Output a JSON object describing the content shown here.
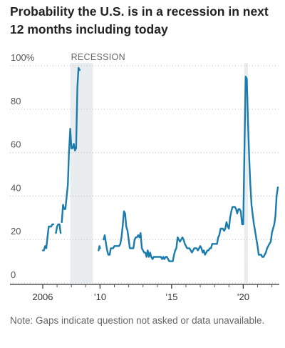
{
  "chart_data": {
    "type": "line",
    "title": "Probability the U.S. is in a recession in next 12 months including today",
    "note": "Note: Gaps indicate question not asked or data unavailable.",
    "y_unit": "percent",
    "ylim": [
      0,
      100
    ],
    "xlim": [
      2005.7,
      2022.7
    ],
    "yticks": [
      0,
      20,
      40,
      60,
      80,
      100
    ],
    "ytick_labels": [
      "0",
      "20",
      "40",
      "60",
      "80",
      "100%"
    ],
    "xticks": [
      2006,
      2010,
      2015,
      2020
    ],
    "xtick_labels": [
      "2006",
      "’10",
      "’15",
      "’20"
    ],
    "grid": "horizontal",
    "colors": {
      "line": "#1a7bad",
      "recession": "#eaedf0",
      "grid": "#bbbbbb"
    },
    "recessions": [
      {
        "label": "RECESSION",
        "start": 2007.92,
        "end": 2009.5
      },
      {
        "label": "",
        "start": 2020.08,
        "end": 2020.33
      }
    ],
    "series": [
      {
        "segments": [
          [
            [
              2006.0,
              15
            ],
            [
              2006.08,
              15
            ],
            [
              2006.17,
              17
            ],
            [
              2006.25,
              16
            ],
            [
              2006.33,
              21
            ],
            [
              2006.42,
              26
            ],
            [
              2006.5,
              26
            ],
            [
              2006.58,
              26
            ],
            [
              2006.67,
              27
            ],
            [
              2006.75,
              27
            ]
          ],
          [
            [
              2006.92,
              23
            ],
            [
              2007.0,
              26
            ],
            [
              2007.08,
              27
            ],
            [
              2007.17,
              27
            ],
            [
              2007.25,
              23
            ]
          ],
          [
            [
              2007.33,
              28
            ],
            [
              2007.42,
              36
            ],
            [
              2007.5,
              34
            ],
            [
              2007.58,
              34
            ],
            [
              2007.67,
              40
            ],
            [
              2007.75,
              45
            ],
            [
              2007.83,
              60
            ],
            [
              2007.92,
              71
            ],
            [
              2008.0,
              62
            ],
            [
              2008.08,
              62
            ],
            [
              2008.17,
              64
            ],
            [
              2008.25,
              61
            ],
            [
              2008.33,
              62
            ],
            [
              2008.42,
              90
            ],
            [
              2008.5,
              99
            ],
            [
              2008.58,
              98
            ]
          ],
          [
            [
              2009.9,
              15
            ],
            [
              2009.96,
              17
            ],
            [
              2010.0,
              16
            ]
          ],
          [
            [
              2010.25,
              20
            ],
            [
              2010.33,
              22
            ],
            [
              2010.42,
              18
            ],
            [
              2010.5,
              15
            ],
            [
              2010.58,
              13
            ],
            [
              2010.67,
              13
            ],
            [
              2010.75,
              16
            ],
            [
              2010.83,
              16
            ],
            [
              2010.92,
              16
            ],
            [
              2011.0,
              17
            ],
            [
              2011.08,
              17
            ],
            [
              2011.17,
              17
            ],
            [
              2011.25,
              17
            ],
            [
              2011.33,
              17
            ],
            [
              2011.42,
              18
            ],
            [
              2011.5,
              21
            ],
            [
              2011.58,
              26
            ],
            [
              2011.67,
              33
            ],
            [
              2011.75,
              32
            ],
            [
              2011.83,
              26
            ],
            [
              2011.92,
              24
            ],
            [
              2012.0,
              20
            ],
            [
              2012.08,
              16
            ],
            [
              2012.17,
              16
            ],
            [
              2012.25,
              16
            ],
            [
              2012.33,
              16
            ],
            [
              2012.42,
              20
            ],
            [
              2012.5,
              21
            ],
            [
              2012.58,
              21
            ],
            [
              2012.67,
              22
            ],
            [
              2012.75,
              21
            ],
            [
              2012.83,
              23
            ],
            [
              2012.92,
              16
            ],
            [
              2013.0,
              15
            ],
            [
              2013.08,
              14
            ],
            [
              2013.17,
              14
            ],
            [
              2013.25,
              12
            ],
            [
              2013.33,
              15
            ],
            [
              2013.42,
              12
            ],
            [
              2013.5,
              14
            ],
            [
              2013.58,
              12
            ],
            [
              2013.67,
              11
            ],
            [
              2013.75,
              12
            ],
            [
              2013.83,
              12
            ],
            [
              2013.92,
              12
            ],
            [
              2014.0,
              12
            ],
            [
              2014.25,
              12
            ],
            [
              2014.33,
              11
            ],
            [
              2014.42,
              12
            ],
            [
              2014.5,
              11
            ],
            [
              2014.58,
              12
            ],
            [
              2014.67,
              12
            ],
            [
              2014.75,
              11
            ],
            [
              2014.83,
              10
            ],
            [
              2014.92,
              10
            ],
            [
              2015.0,
              10
            ],
            [
              2015.08,
              10
            ],
            [
              2015.17,
              13
            ],
            [
              2015.25,
              15
            ],
            [
              2015.33,
              16
            ],
            [
              2015.42,
              21
            ],
            [
              2015.5,
              20
            ],
            [
              2015.58,
              19
            ],
            [
              2015.67,
              20
            ],
            [
              2015.75,
              21
            ],
            [
              2015.83,
              20
            ],
            [
              2015.92,
              18
            ],
            [
              2016.0,
              17
            ],
            [
              2016.08,
              16
            ],
            [
              2016.17,
              16
            ],
            [
              2016.25,
              16
            ],
            [
              2016.33,
              15
            ],
            [
              2016.42,
              14
            ],
            [
              2016.5,
              15
            ],
            [
              2016.58,
              16
            ],
            [
              2016.67,
              16
            ],
            [
              2016.75,
              16
            ],
            [
              2016.83,
              15
            ],
            [
              2016.92,
              16
            ],
            [
              2017.0,
              17
            ],
            [
              2017.08,
              16
            ],
            [
              2017.17,
              14
            ],
            [
              2017.25,
              15
            ],
            [
              2017.33,
              13
            ],
            [
              2017.42,
              14
            ],
            [
              2017.5,
              15
            ],
            [
              2017.58,
              15
            ],
            [
              2017.67,
              16
            ],
            [
              2017.75,
              16
            ],
            [
              2017.83,
              18
            ],
            [
              2017.92,
              18
            ],
            [
              2018.0,
              18
            ],
            [
              2018.08,
              18
            ],
            [
              2018.17,
              18
            ],
            [
              2018.25,
              21
            ],
            [
              2018.33,
              22
            ],
            [
              2018.42,
              25
            ],
            [
              2018.5,
              25
            ],
            [
              2018.58,
              25
            ],
            [
              2018.67,
              24
            ],
            [
              2018.75,
              25
            ],
            [
              2018.83,
              28
            ],
            [
              2018.92,
              26
            ],
            [
              2019.0,
              25
            ],
            [
              2019.08,
              30
            ],
            [
              2019.17,
              33
            ],
            [
              2019.25,
              35
            ],
            [
              2019.33,
              35
            ],
            [
              2019.42,
              35
            ],
            [
              2019.5,
              34
            ],
            [
              2019.58,
              32
            ],
            [
              2019.67,
              34
            ],
            [
              2019.75,
              34
            ],
            [
              2019.83,
              33
            ],
            [
              2019.92,
              27
            ],
            [
              2020.0,
              27
            ],
            [
              2020.08,
              60
            ],
            [
              2020.17,
              95
            ],
            [
              2020.25,
              94
            ],
            [
              2020.33,
              75
            ],
            [
              2020.42,
              57
            ],
            [
              2020.5,
              45
            ],
            [
              2020.58,
              36
            ],
            [
              2020.67,
              31
            ],
            [
              2020.75,
              27
            ],
            [
              2020.83,
              24
            ],
            [
              2020.92,
              20
            ],
            [
              2021.0,
              17
            ],
            [
              2021.08,
              13
            ],
            [
              2021.17,
              13
            ],
            [
              2021.25,
              13
            ],
            [
              2021.33,
              12
            ],
            [
              2021.42,
              12
            ],
            [
              2021.5,
              13
            ],
            [
              2021.58,
              14
            ],
            [
              2021.67,
              16
            ],
            [
              2021.75,
              17
            ],
            [
              2021.83,
              18
            ],
            [
              2021.92,
              19
            ],
            [
              2022.0,
              23
            ],
            [
              2022.08,
              25
            ],
            [
              2022.17,
              27
            ],
            [
              2022.25,
              31
            ],
            [
              2022.33,
              40
            ],
            [
              2022.42,
              44
            ]
          ]
        ]
      }
    ]
  }
}
